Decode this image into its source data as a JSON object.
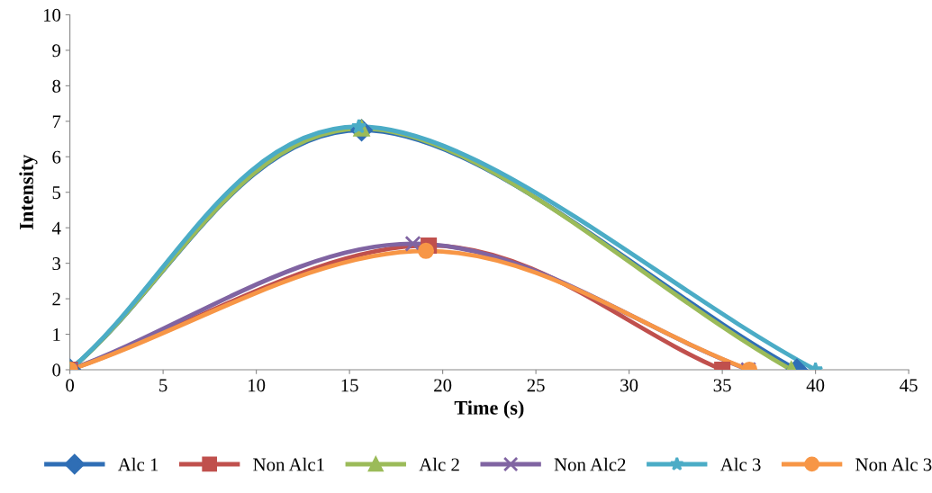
{
  "chart_data": {
    "type": "line",
    "xlabel": "Time (s)",
    "ylabel": "Intensity",
    "xlim": [
      0,
      45
    ],
    "xticks": [
      0,
      5,
      10,
      15,
      20,
      25,
      30,
      35,
      40,
      45
    ],
    "ylim": [
      0,
      10
    ],
    "yticks": [
      0,
      1,
      2,
      3,
      4,
      5,
      6,
      7,
      8,
      9,
      10
    ],
    "grid": false,
    "legend": "bottom",
    "series": [
      {
        "name": "Alc 1",
        "color": "#2f6eb5",
        "marker": "diamond",
        "x": [
          0,
          15.65,
          39.0
        ],
        "values": [
          0,
          6.75,
          0
        ]
      },
      {
        "name": "Non Alc1",
        "color": "#c0504d",
        "marker": "square",
        "x": [
          0,
          19.25,
          35.0
        ],
        "values": [
          0,
          3.5,
          0
        ]
      },
      {
        "name": "Alc 2",
        "color": "#9bbb59",
        "marker": "triangle",
        "x": [
          0,
          15.65,
          38.7
        ],
        "values": [
          0,
          6.8,
          0
        ]
      },
      {
        "name": "Non Alc2",
        "color": "#8064a2",
        "marker": "cross",
        "x": [
          0,
          18.4,
          36.4
        ],
        "values": [
          0,
          3.55,
          0
        ]
      },
      {
        "name": "Alc 3",
        "color": "#4bacc6",
        "marker": "star",
        "x": [
          0,
          15.5,
          40.0
        ],
        "values": [
          0,
          6.85,
          0
        ]
      },
      {
        "name": "Non Alc 3",
        "color": "#f79646",
        "marker": "circle",
        "x": [
          0,
          19.1,
          36.45
        ],
        "values": [
          0,
          3.35,
          0
        ]
      }
    ]
  }
}
